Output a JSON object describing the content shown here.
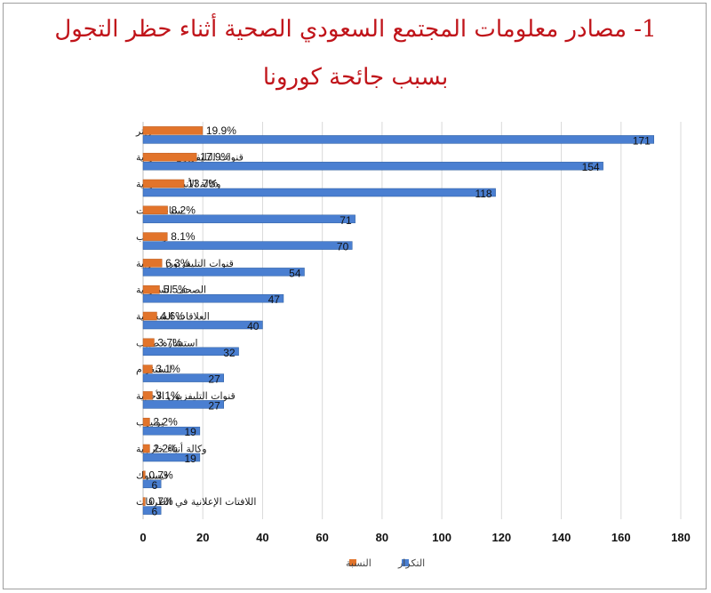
{
  "title_line1": "1- مصادر معلومات المجتمع السعودي الصحية أثناء حظر التجول",
  "title_line2": "بسبب جائحة كورونا",
  "colors": {
    "count": "#4a7fd1",
    "percent": "#e2742b",
    "title": "#c0141a"
  },
  "chart_data": {
    "type": "bar",
    "orientation": "horizontal",
    "categories": [
      "تويتر",
      "قنوات التليفزيون السعودية",
      "وكالة الأنباء السعودية",
      "سناب شات",
      "واتساب",
      "قنوات التليفزيون العربية",
      "الصحف السعودية",
      "العلاقات الشخصية",
      "استشارة طبيب",
      "انستغرام",
      "قنوات التليفزيون الأجنبية",
      "يوتيوب",
      "وكالة أنباء خارجية",
      "فيسبوك",
      "اللافتات الإعلانية في الطرقات"
    ],
    "series": [
      {
        "name": "النسبة",
        "values": [
          19.9,
          17.9,
          13.7,
          8.2,
          8.1,
          6.3,
          5.5,
          4.6,
          3.7,
          3.1,
          3.1,
          2.2,
          2.2,
          0.7,
          0.7
        ],
        "labels": [
          "19.9%",
          "17.9%",
          "13.7%",
          "8.2%",
          "8.1%",
          "6.3%",
          "5.5%",
          "4.6%",
          "3.7%",
          "3.1%",
          "3.1%",
          "2.2%",
          "2.2%",
          "0.7%",
          "0.7%"
        ]
      },
      {
        "name": "التكرار",
        "values": [
          171,
          154,
          118,
          71,
          70,
          54,
          47,
          40,
          32,
          27,
          27,
          19,
          19,
          6,
          6
        ],
        "labels": [
          "171",
          "154",
          "118",
          "71",
          "70",
          "54",
          "47",
          "40",
          "32",
          "27",
          "27",
          "19",
          "19",
          "6",
          "6"
        ]
      }
    ],
    "xlim": [
      0,
      180
    ],
    "xticks": [
      "0",
      "20",
      "40",
      "60",
      "80",
      "100",
      "120",
      "140",
      "160",
      "180"
    ],
    "grid": true,
    "legend_position": "bottom-center"
  }
}
